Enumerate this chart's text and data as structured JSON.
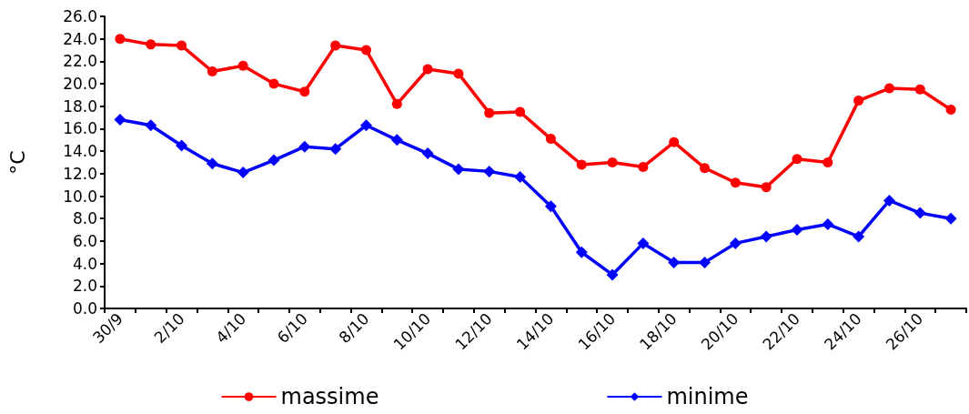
{
  "chart_data": {
    "type": "line",
    "ylabel": "°C",
    "categories": [
      "30/9",
      null,
      "2/10",
      null,
      "4/10",
      null,
      "6/10",
      null,
      "8/10",
      null,
      "10/10",
      null,
      "12/10",
      null,
      "14/10",
      null,
      "16/10",
      null,
      "18/10",
      null,
      "20/10",
      null,
      "22/10",
      null,
      "24/10",
      null,
      "26/10",
      null
    ],
    "series": [
      {
        "name": "massime",
        "color": "#ff0000",
        "marker": "circle",
        "values": [
          24.0,
          23.5,
          23.4,
          21.1,
          21.6,
          20.0,
          19.3,
          23.4,
          23.0,
          18.2,
          21.3,
          20.9,
          17.4,
          17.5,
          15.1,
          12.8,
          13.0,
          12.6,
          14.8,
          12.5,
          11.2,
          10.8,
          13.3,
          13.0,
          18.5,
          19.6,
          19.5,
          17.7
        ]
      },
      {
        "name": "minime",
        "color": "#0000ff",
        "marker": "diamond",
        "values": [
          16.8,
          16.3,
          14.5,
          12.9,
          12.1,
          13.2,
          14.4,
          14.2,
          16.3,
          15.0,
          13.8,
          12.4,
          12.2,
          11.7,
          9.1,
          5.0,
          3.0,
          5.8,
          4.1,
          4.1,
          5.8,
          6.4,
          7.0,
          7.5,
          6.4,
          9.6,
          8.5,
          8.0
        ]
      }
    ],
    "ylim": [
      0,
      26
    ],
    "yticks": [
      {
        "value": 0,
        "label": "0.0"
      },
      {
        "value": 2,
        "label": "2.0"
      },
      {
        "value": 4,
        "label": "4.0"
      },
      {
        "value": 6,
        "label": "6.0"
      },
      {
        "value": 8,
        "label": "8.0"
      },
      {
        "value": 10,
        "label": "10.0"
      },
      {
        "value": 12,
        "label": "12.0"
      },
      {
        "value": 14,
        "label": "14.0"
      },
      {
        "value": 16,
        "label": "16.0"
      },
      {
        "value": 18,
        "label": "18.0"
      },
      {
        "value": 20,
        "label": "20.0"
      },
      {
        "value": 22,
        "label": "22.0"
      },
      {
        "value": 24,
        "label": "24.0"
      },
      {
        "value": 26,
        "label": "26.0"
      }
    ],
    "legend": "bottom",
    "line_style": "solid"
  }
}
